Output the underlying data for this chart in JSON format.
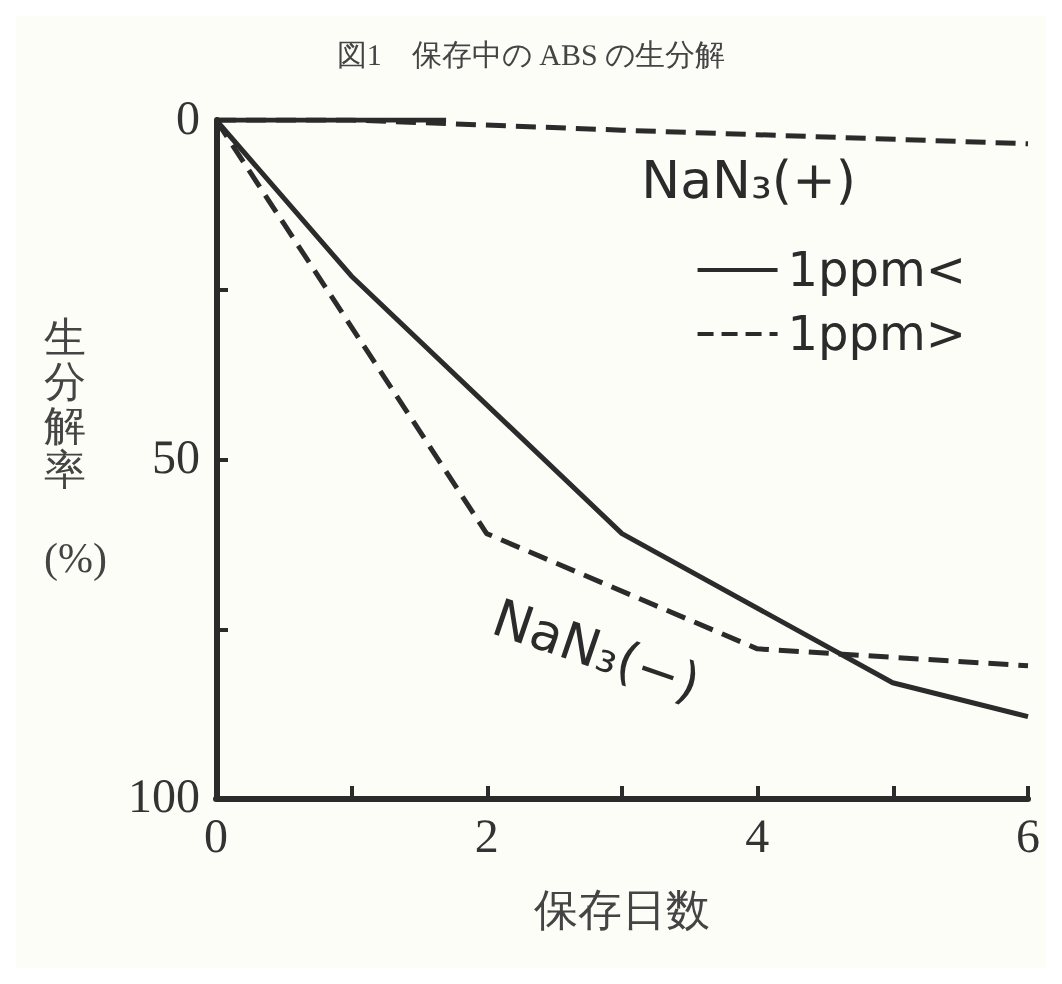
{
  "chart_data": {
    "type": "line",
    "title": "図1　保存中の ABS の生分解",
    "xlabel": "保存日数",
    "ylabel": "生分解率(%)",
    "legend_title": "NaN₃(+)",
    "legend": "top right",
    "grid": false,
    "marker": "none",
    "xlim": [
      0,
      6
    ],
    "xticks": [
      0,
      {
        "value": 1,
        "label": null
      },
      2,
      {
        "value": 3,
        "label": null
      },
      4,
      {
        "value": 5,
        "label": null
      },
      6
    ],
    "ylim": [
      100,
      0
    ],
    "yticks": [
      0,
      {
        "value": 25,
        "label": null
      },
      50,
      {
        "value": 75,
        "label": null
      },
      100
    ],
    "series": [
      {
        "name": "1ppm<",
        "color": "#2b2b2b",
        "line_style": "solid",
        "x": [
          0,
          1.7
        ],
        "values": [
          0,
          0
        ]
      },
      {
        "name": "1ppm>",
        "color": "#2b2b2b",
        "line_style": "dashed",
        "x": [
          0,
          1,
          3,
          6
        ],
        "values": [
          0,
          0,
          1.5,
          3.5
        ]
      },
      {
        "color": "#2b2b2b",
        "line_style": "solid",
        "x": [
          0,
          1,
          3,
          5,
          6
        ],
        "values": [
          0,
          23,
          61,
          83,
          88
        ]
      },
      {
        "color": "#2b2b2b",
        "line_style": "dashed",
        "x": [
          0,
          2,
          4,
          6
        ],
        "values": [
          0,
          61,
          78,
          80.5
        ]
      }
    ],
    "annotations": [
      "NaN₃(−)"
    ]
  }
}
